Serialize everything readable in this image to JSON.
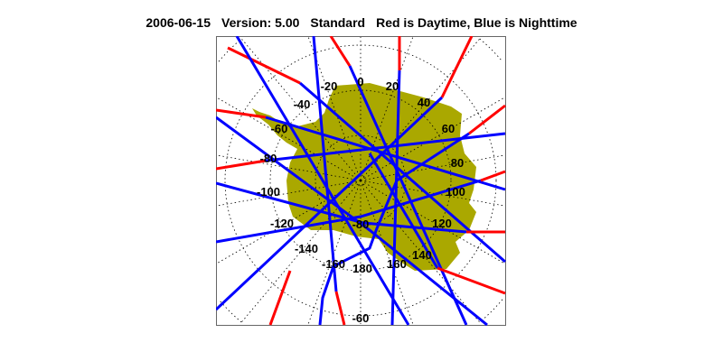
{
  "title": {
    "date": "2006-06-15",
    "version": "Version: 5.00",
    "product": "Standard",
    "legend": "Red is Daytime, Blue is Nighttime"
  },
  "map": {
    "projection": "south polar stereographic",
    "land_color": "#aaa800",
    "day_color": "#ff0000",
    "night_color": "#0000ff",
    "longitude_labels": [
      "0",
      "20",
      "40",
      "60",
      "80",
      "100",
      "120",
      "140",
      "160",
      "180",
      "-160",
      "-140",
      "-120",
      "-100",
      "-80",
      "-60",
      "-40",
      "-20"
    ],
    "latitude_labels": [
      "-80",
      "-60"
    ]
  }
}
